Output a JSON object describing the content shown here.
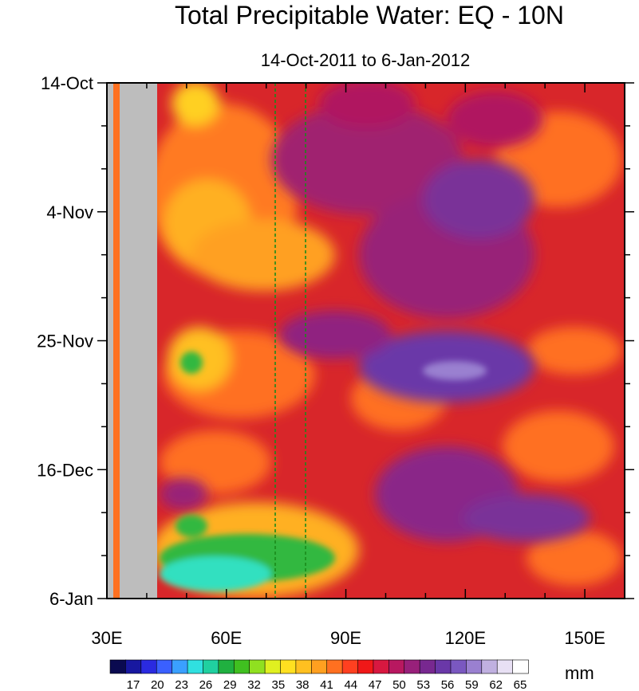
{
  "chart_data": {
    "type": "heatmap",
    "title": "Total Precipitable Water: EQ - 10N",
    "subtitle": "14-Oct-2011 to 6-Jan-2012",
    "x_ticks": [
      "30E",
      "60E",
      "90E",
      "120E",
      "150E"
    ],
    "x_tick_values": [
      30,
      60,
      90,
      120,
      150
    ],
    "xlim": [
      30,
      160
    ],
    "y_ticks": [
      "14-Oct",
      "4-Nov",
      "25-Nov",
      "16-Dec",
      "6-Jan"
    ],
    "y_tick_values": [
      0,
      21,
      42,
      63,
      84
    ],
    "ylim": [
      0,
      84
    ],
    "land_mask_lon": [
      30,
      43
    ],
    "reference_lines_lon": [
      72.5,
      80
    ],
    "colorbar": {
      "unit": "mm",
      "labels": [
        "17",
        "20",
        "23",
        "26",
        "29",
        "32",
        "35",
        "38",
        "41",
        "44",
        "47",
        "50",
        "53",
        "56",
        "59",
        "62",
        "65"
      ],
      "colors": [
        "#0a0a50",
        "#1818a0",
        "#2a2ae0",
        "#3a60ff",
        "#3aa0ff",
        "#30e0e0",
        "#20d0a0",
        "#20b040",
        "#40c020",
        "#90e020",
        "#e0f020",
        "#ffe020",
        "#ffc020",
        "#ffa020",
        "#ff7020",
        "#ff4020",
        "#f01818",
        "#d81840",
        "#b81860",
        "#98207a",
        "#782890",
        "#6a38a8",
        "#7a58c0",
        "#9a80d0",
        "#c0b0e0",
        "#e8e0f4",
        "#ffffff"
      ]
    },
    "colors": {
      "land": "#bdbdbd",
      "background_field": "#d8262a",
      "ref_line": "#1a8a1a"
    }
  }
}
